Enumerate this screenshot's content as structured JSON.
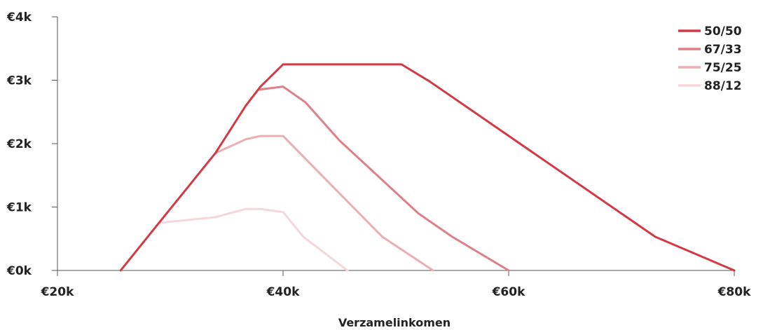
{
  "chart_data": {
    "type": "line",
    "title": "",
    "xlabel": "Verzamelinkomen",
    "ylabel": "",
    "xlim": [
      20000,
      80000
    ],
    "ylim": [
      0,
      4000
    ],
    "x_ticks": [
      20000,
      40000,
      60000,
      80000
    ],
    "x_tick_labels": [
      "€20k",
      "€40k",
      "€60k",
      "€80k"
    ],
    "y_ticks": [
      0,
      1000,
      2000,
      3000,
      4000
    ],
    "y_tick_labels": [
      "€0k",
      "€1k",
      "€2k",
      "€3k",
      "€4k"
    ],
    "grid": false,
    "legend_position": "top-right",
    "series": [
      {
        "name": "50/50",
        "color": "#d23a46",
        "points": [
          [
            25600,
            0
          ],
          [
            29000,
            750
          ],
          [
            34000,
            1850
          ],
          [
            36700,
            2600
          ],
          [
            38000,
            2900
          ],
          [
            40000,
            3250
          ],
          [
            50500,
            3250
          ],
          [
            53000,
            2980
          ],
          [
            73000,
            530
          ],
          [
            80000,
            0
          ]
        ]
      },
      {
        "name": "67/33",
        "color": "#df7f87",
        "points": [
          [
            37800,
            2850
          ],
          [
            40000,
            2900
          ],
          [
            42000,
            2650
          ],
          [
            45000,
            2050
          ],
          [
            52000,
            900
          ],
          [
            55000,
            530
          ],
          [
            60000,
            0
          ]
        ]
      },
      {
        "name": "75/25",
        "color": "#ebaeb3",
        "points": [
          [
            34000,
            1850
          ],
          [
            36700,
            2070
          ],
          [
            38000,
            2120
          ],
          [
            40000,
            2120
          ],
          [
            48800,
            530
          ],
          [
            53300,
            0
          ]
        ]
      },
      {
        "name": "88/12",
        "color": "#f5d7da",
        "points": [
          [
            29000,
            750
          ],
          [
            34000,
            840
          ],
          [
            36700,
            970
          ],
          [
            38000,
            970
          ],
          [
            40000,
            920
          ],
          [
            41800,
            530
          ],
          [
            45700,
            0
          ]
        ]
      }
    ]
  }
}
